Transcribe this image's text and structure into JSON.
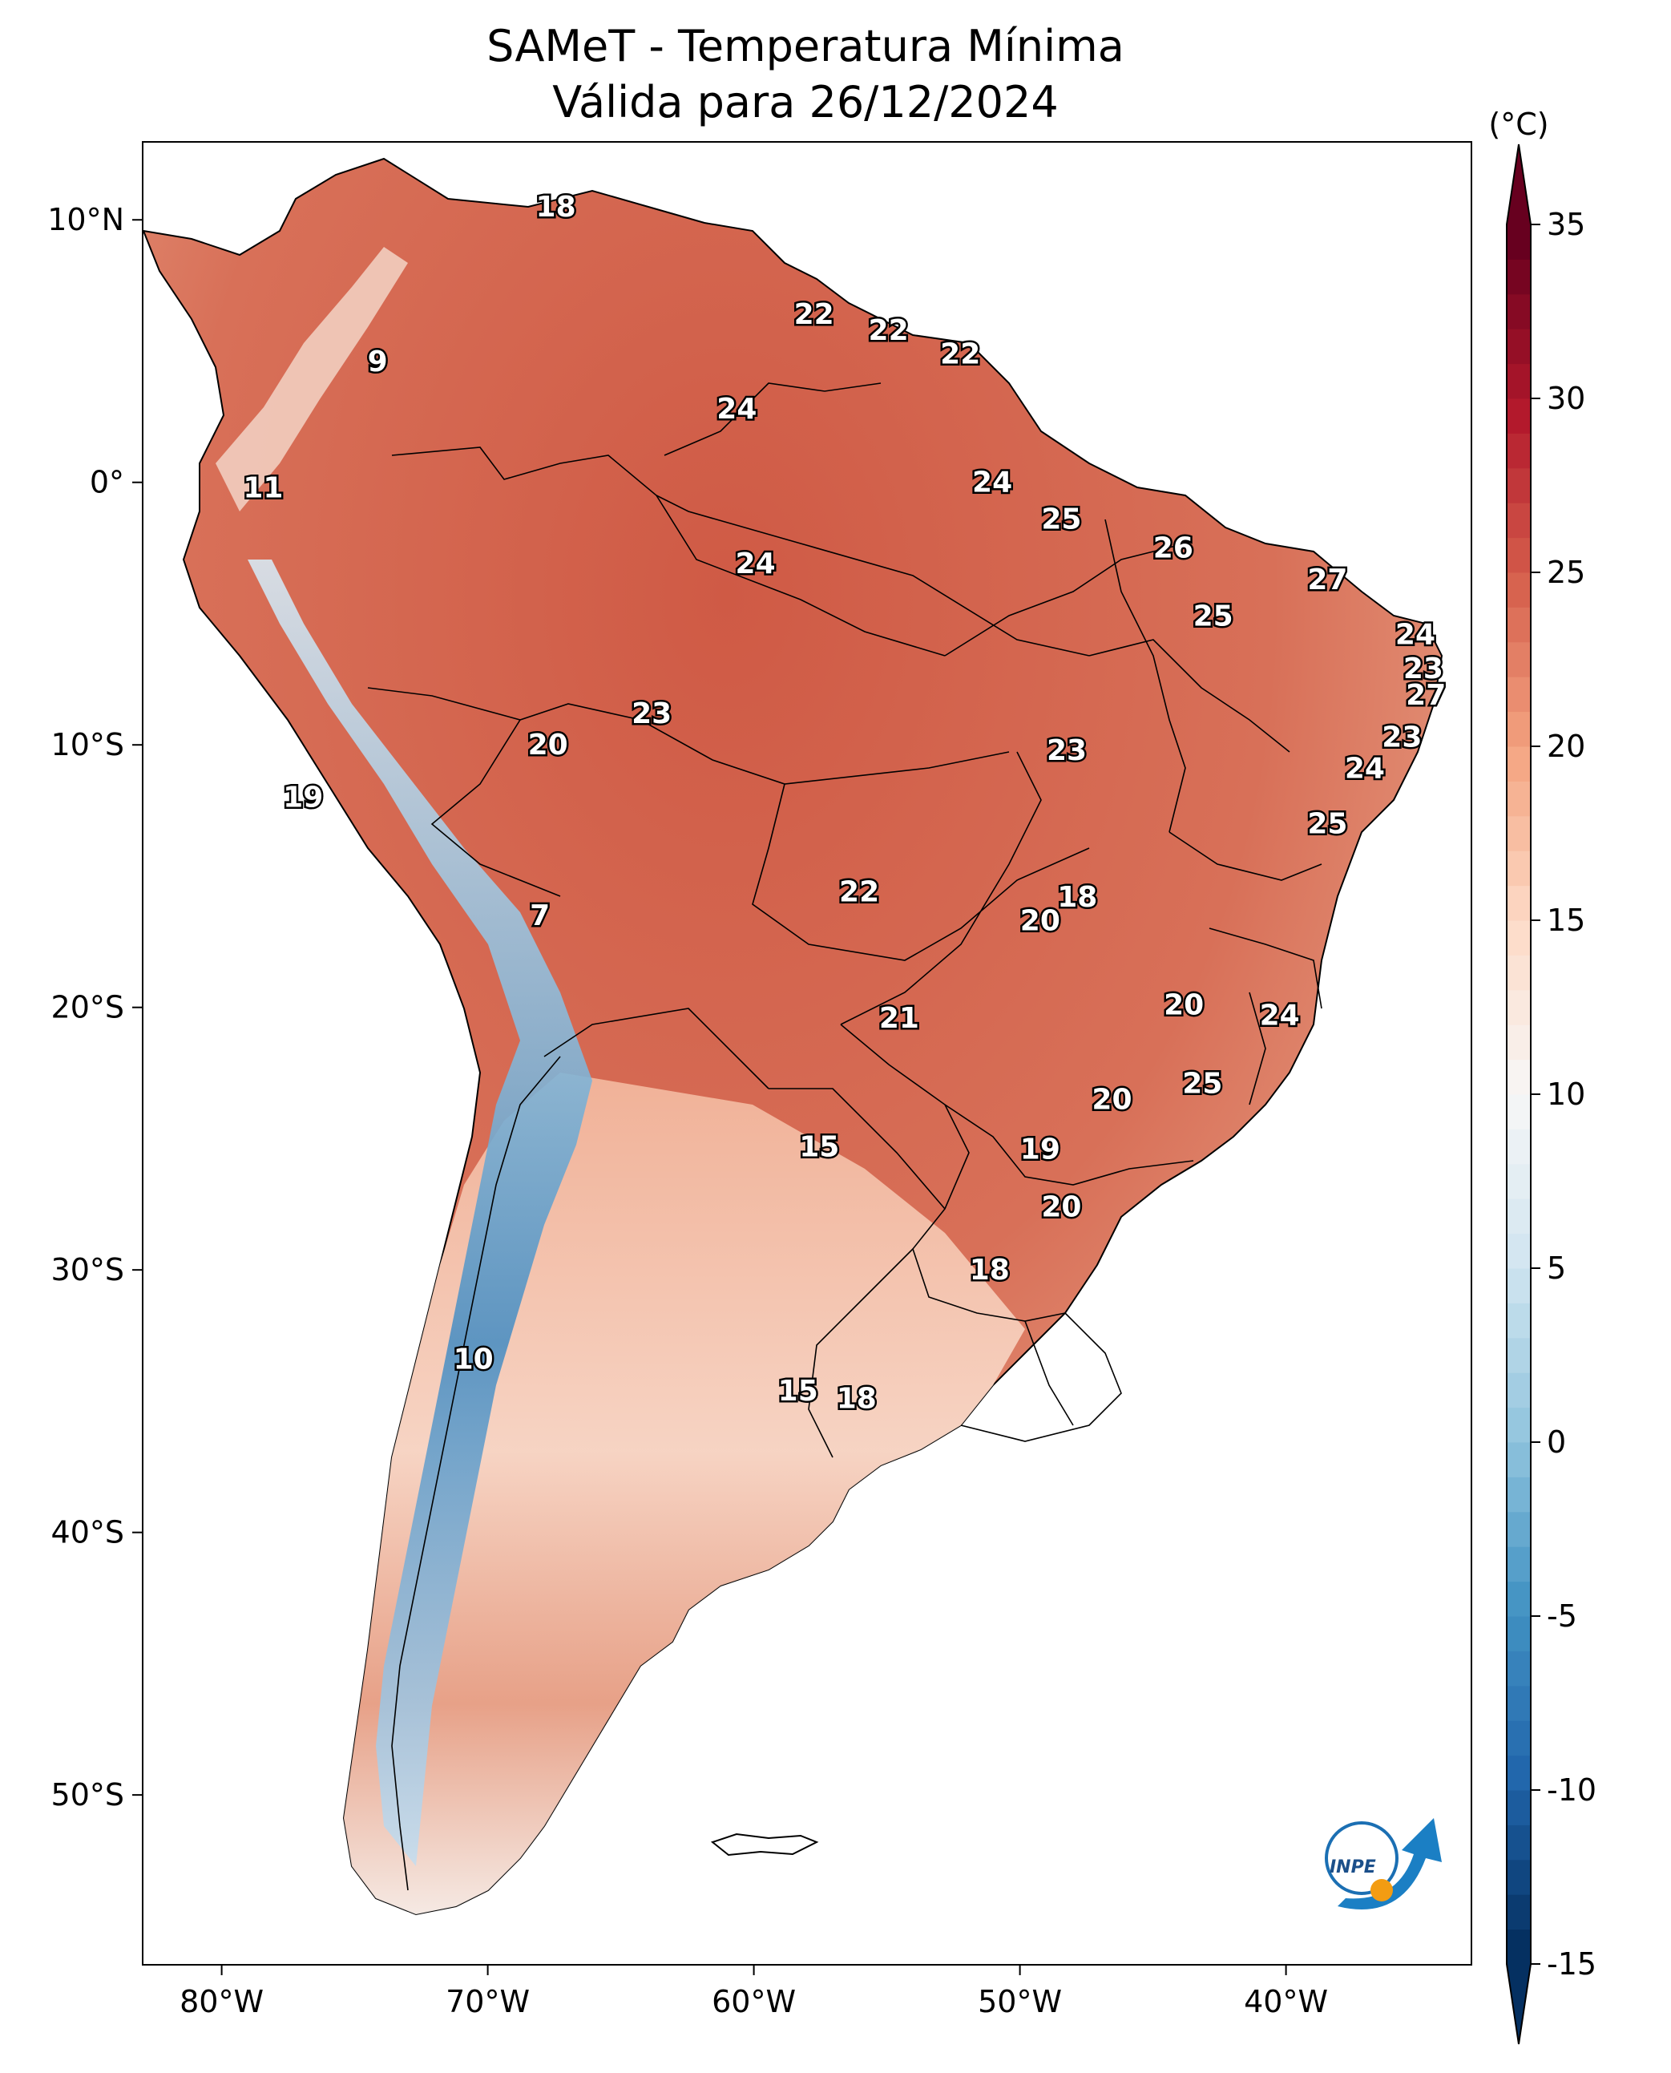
{
  "title": {
    "line1": "SAMeT - Temperatura Mínima",
    "line2": "Válida para 26/12/2024"
  },
  "axes": {
    "lon_ticks": [
      "80°W",
      "70°W",
      "60°W",
      "50°W",
      "40°W"
    ],
    "lat_ticks": [
      "10°N",
      "0°",
      "10°S",
      "20°S",
      "30°S",
      "40°S",
      "50°S"
    ]
  },
  "colorbar": {
    "unit": "(°C)",
    "ticks": [
      "35",
      "30",
      "25",
      "20",
      "15",
      "10",
      "5",
      "0",
      "-5",
      "-10",
      "-15"
    ],
    "min": -15,
    "max": 35,
    "extend": "both",
    "colormap": "RdBu_r",
    "colors": [
      "#053061",
      "#2166ac",
      "#4393c3",
      "#92c5de",
      "#d1e5f0",
      "#f7f7f7",
      "#fddbc7",
      "#f4a582",
      "#d6604d",
      "#b2182b",
      "#67001f"
    ]
  },
  "station_values": [
    {
      "lon": -67.5,
      "lat": 10.5,
      "value": "18"
    },
    {
      "lon": -57.8,
      "lat": 6.4,
      "value": "22"
    },
    {
      "lon": -55.0,
      "lat": 5.8,
      "value": "22"
    },
    {
      "lon": -52.3,
      "lat": 4.9,
      "value": "22"
    },
    {
      "lon": -74.2,
      "lat": 4.6,
      "value": "9"
    },
    {
      "lon": -60.7,
      "lat": 2.8,
      "value": "24"
    },
    {
      "lon": -78.5,
      "lat": -0.2,
      "value": "11"
    },
    {
      "lon": -51.1,
      "lat": 0.0,
      "value": "24"
    },
    {
      "lon": -48.5,
      "lat": -1.4,
      "value": "25"
    },
    {
      "lon": -60.0,
      "lat": -3.1,
      "value": "24"
    },
    {
      "lon": -44.3,
      "lat": -2.5,
      "value": "26"
    },
    {
      "lon": -38.5,
      "lat": -3.7,
      "value": "27"
    },
    {
      "lon": -42.8,
      "lat": -5.1,
      "value": "25"
    },
    {
      "lon": -35.2,
      "lat": -5.8,
      "value": "24"
    },
    {
      "lon": -34.9,
      "lat": -7.1,
      "value": "23"
    },
    {
      "lon": -34.8,
      "lat": -8.1,
      "value": "27"
    },
    {
      "lon": -63.9,
      "lat": -8.8,
      "value": "23"
    },
    {
      "lon": -35.7,
      "lat": -9.7,
      "value": "23"
    },
    {
      "lon": -67.8,
      "lat": -10.0,
      "value": "20"
    },
    {
      "lon": -48.3,
      "lat": -10.2,
      "value": "23"
    },
    {
      "lon": -37.1,
      "lat": -10.9,
      "value": "24"
    },
    {
      "lon": -77.0,
      "lat": -12.0,
      "value": "19"
    },
    {
      "lon": -38.5,
      "lat": -13.0,
      "value": "25"
    },
    {
      "lon": -56.1,
      "lat": -15.6,
      "value": "22"
    },
    {
      "lon": -47.9,
      "lat": -15.8,
      "value": "18"
    },
    {
      "lon": -49.3,
      "lat": -16.7,
      "value": "20"
    },
    {
      "lon": -68.1,
      "lat": -16.5,
      "value": "7"
    },
    {
      "lon": -43.9,
      "lat": -19.9,
      "value": "20"
    },
    {
      "lon": -40.3,
      "lat": -20.3,
      "value": "24"
    },
    {
      "lon": -54.6,
      "lat": -20.4,
      "value": "21"
    },
    {
      "lon": -43.2,
      "lat": -22.9,
      "value": "25"
    },
    {
      "lon": -46.6,
      "lat": -23.5,
      "value": "20"
    },
    {
      "lon": -57.6,
      "lat": -25.3,
      "value": "15"
    },
    {
      "lon": -49.3,
      "lat": -25.4,
      "value": "19"
    },
    {
      "lon": -48.5,
      "lat": -27.6,
      "value": "20"
    },
    {
      "lon": -51.2,
      "lat": -30.0,
      "value": "18"
    },
    {
      "lon": -70.6,
      "lat": -33.4,
      "value": "10"
    },
    {
      "lon": -58.4,
      "lat": -34.6,
      "value": "15"
    },
    {
      "lon": -56.2,
      "lat": -34.9,
      "value": "18"
    }
  ]
}
